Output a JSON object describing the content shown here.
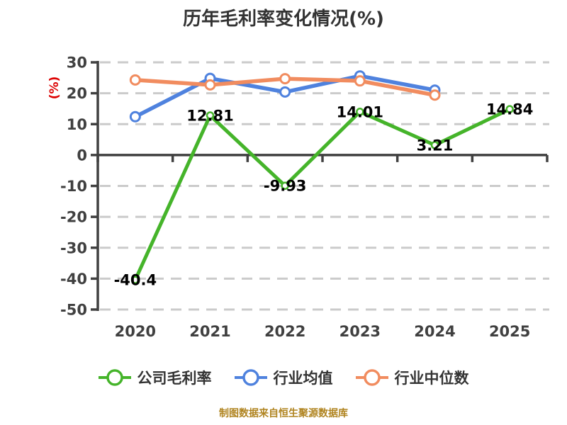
{
  "title": "历年毛利率变化情况(%)",
  "title_color": "#333333",
  "y_axis_label": "(%)",
  "y_axis_label_color": "#DD0000",
  "footer": "制图数据来自恒生聚源数据库",
  "footer_color": "#B08420",
  "chart_data": {
    "type": "line",
    "title": "历年毛利率变化情况(%)",
    "categories": [
      "2020",
      "2021",
      "2022",
      "2023",
      "2024",
      "2025"
    ],
    "series": [
      {
        "name": "公司毛利率",
        "color": "#45B42A",
        "values": [
          -40.4,
          12.81,
          -9.93,
          14.01,
          3.21,
          14.84
        ],
        "data_labels": [
          "-40.4",
          "12.81",
          "-9.93",
          "14.01",
          "3.21",
          "14.84"
        ]
      },
      {
        "name": "行业均值",
        "color": "#4F82DE",
        "values": [
          12.4,
          24.8,
          20.4,
          25.6,
          21.0,
          null
        ],
        "data_labels": null
      },
      {
        "name": "行业中位数",
        "color": "#F18C5F",
        "values": [
          24.3,
          22.7,
          24.7,
          24.0,
          19.4,
          null
        ],
        "data_labels": null
      }
    ],
    "ylim": [
      -50,
      30
    ],
    "ytick_step": 10,
    "ytick_labels": [
      "30",
      "20",
      "10",
      "0",
      "-10",
      "-20",
      "-30",
      "-40",
      "-50"
    ],
    "grid": "horizontal-dashed",
    "grid_color": "#CBCBCB",
    "axis_color": "#404040",
    "tick_label_color": "#404040",
    "data_label_color": "#000000",
    "legend_position": "bottom",
    "xlabel": "",
    "ylabel": "(%)"
  }
}
